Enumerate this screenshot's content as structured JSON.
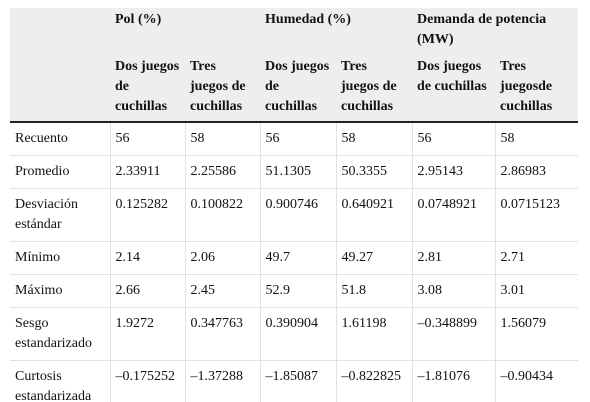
{
  "table": {
    "groups": [
      "Pol (%)",
      "Humedad (%)",
      "Demanda de potencia (MW)"
    ],
    "subheaders": [
      "Dos juegos de cuchillas",
      "Tres juegos de cuchillas",
      "Dos juegos de cuchillas",
      "Tres juegos de cuchillas",
      "Dos juegos de cuchillas",
      "Tres juegosde cuchillas"
    ],
    "rows": [
      {
        "label": "Recuento",
        "values": [
          "56",
          "58",
          "56",
          "58",
          "56",
          "58"
        ]
      },
      {
        "label": "Promedio",
        "values": [
          "2.33911",
          "2.25586",
          "51.1305",
          "50.3355",
          "2.95143",
          "2.86983"
        ]
      },
      {
        "label": "Desviación estándar",
        "values": [
          "0.125282",
          "0.100822",
          "0.900746",
          "0.640921",
          "0.0748921",
          "0.0715123"
        ]
      },
      {
        "label": "Mínimo",
        "values": [
          "2.14",
          "2.06",
          "49.7",
          "49.27",
          "2.81",
          "2.71"
        ]
      },
      {
        "label": "Máximo",
        "values": [
          "2.66",
          "2.45",
          "52.9",
          "51.8",
          "3.08",
          "3.01"
        ]
      },
      {
        "label": "Sesgo estandarizado",
        "values": [
          "1.9272",
          "0.347763",
          "0.390904",
          "1.61198",
          "–0.348899",
          "1.56079"
        ]
      },
      {
        "label": "Curtosis estandarizada",
        "values": [
          "–0.175252",
          "–1.37288",
          "–1.85087",
          "–0.822825",
          "–1.81076",
          "–0.90434"
        ]
      }
    ]
  }
}
